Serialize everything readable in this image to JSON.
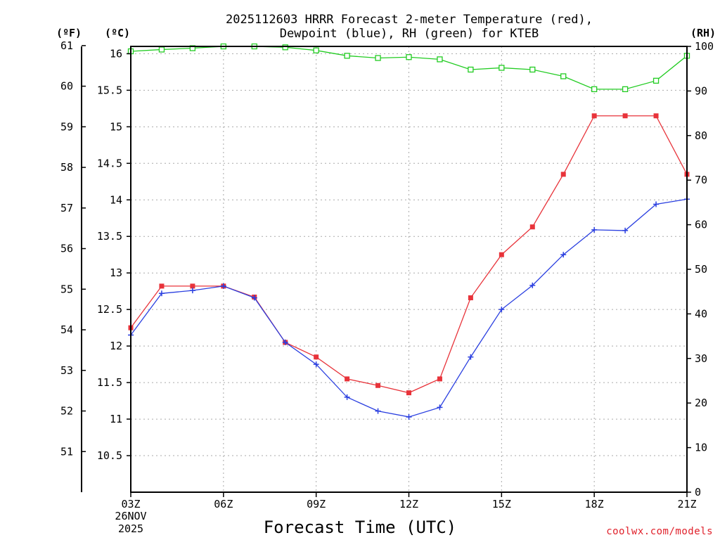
{
  "title_line1": "2025112603 HRRR Forecast 2-meter Temperature (red),",
  "title_line2": "Dewpoint (blue), RH (green) for KTEB",
  "units": {
    "fahrenheit": "(ºF)",
    "celsius": "(ºC)",
    "rh": "(RH)"
  },
  "xlabel": "Forecast Time (UTC)",
  "date_label": [
    "26NOV",
    "2025"
  ],
  "credit": "coolwx.com/models",
  "colors": {
    "temperature": "#e8333a",
    "dewpoint": "#2a3fe0",
    "rh": "#22cc22"
  },
  "chart_data": {
    "type": "line",
    "title": "2025112603 HRRR Forecast 2-meter Temperature (red), Dewpoint (blue), RH (green) for KTEB",
    "xlabel": "Forecast Time (UTC)",
    "x_hours": [
      3,
      4,
      5,
      6,
      7,
      8,
      9,
      10,
      11,
      12,
      13,
      14,
      15,
      16,
      17,
      18,
      19,
      20,
      21
    ],
    "x_ticks": [
      {
        "hour": 3,
        "label": "03Z"
      },
      {
        "hour": 6,
        "label": "06Z"
      },
      {
        "hour": 9,
        "label": "09Z"
      },
      {
        "hour": 12,
        "label": "12Z"
      },
      {
        "hour": 15,
        "label": "15Z"
      },
      {
        "hour": 18,
        "label": "18Z"
      },
      {
        "hour": 21,
        "label": "21Z"
      }
    ],
    "xlim": [
      3,
      21
    ],
    "celsius_axis": {
      "ylim": [
        10.0,
        16.1
      ],
      "ticks": [
        "10.5",
        "11",
        "11.5",
        "12",
        "12.5",
        "13",
        "13.5",
        "14",
        "14.5",
        "15",
        "15.5",
        "16"
      ]
    },
    "fahrenheit_axis": {
      "ticks": [
        "51",
        "52",
        "53",
        "54",
        "55",
        "56",
        "57",
        "58",
        "59",
        "60",
        "61"
      ]
    },
    "rh_axis": {
      "ylim": [
        0,
        100
      ],
      "ticks": [
        "0",
        "10",
        "20",
        "30",
        "40",
        "50",
        "60",
        "70",
        "80",
        "90",
        "100"
      ]
    },
    "series": [
      {
        "name": "Temperature (ºC)",
        "color": "red",
        "marker": "filled-square",
        "axis": "celsius",
        "values": [
          12.25,
          12.82,
          12.82,
          12.82,
          12.67,
          12.05,
          11.85,
          11.55,
          11.46,
          11.36,
          11.55,
          12.66,
          13.25,
          13.63,
          14.35,
          15.15,
          15.15,
          15.15,
          14.35
        ]
      },
      {
        "name": "Dewpoint (ºC)",
        "color": "blue",
        "marker": "plus",
        "axis": "celsius",
        "values": [
          12.15,
          12.72,
          12.76,
          12.82,
          12.66,
          12.05,
          11.75,
          11.3,
          11.11,
          11.03,
          11.16,
          11.85,
          12.5,
          12.83,
          13.25,
          13.59,
          13.58,
          13.94,
          14.01
        ]
      },
      {
        "name": "RH (%)",
        "color": "green",
        "marker": "open-square",
        "axis": "rh",
        "values": [
          98.9,
          99.3,
          99.6,
          100,
          100,
          99.8,
          99.1,
          97.9,
          97.4,
          97.6,
          97.1,
          94.8,
          95.2,
          94.8,
          93.3,
          90.4,
          90.4,
          92.3,
          97.9
        ]
      }
    ]
  }
}
